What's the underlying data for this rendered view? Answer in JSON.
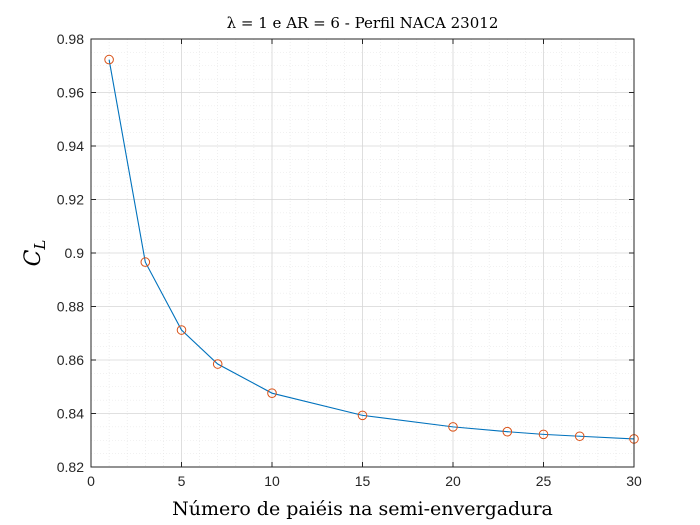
{
  "chart_data": {
    "type": "line",
    "title": "λ = 1 e AR = 6 - Perfil NACA 23012",
    "xlabel": "Número de paiéis na semi-envergadura",
    "ylabel_main": "C",
    "ylabel_sub": "L",
    "xlim": [
      0,
      30
    ],
    "ylim": [
      0.82,
      0.98
    ],
    "xticks": [
      0,
      5,
      10,
      15,
      20,
      25,
      30
    ],
    "xtick_labels": [
      "0",
      "5",
      "10",
      "15",
      "20",
      "25",
      "30"
    ],
    "yticks": [
      0.82,
      0.84,
      0.86,
      0.88,
      0.9,
      0.92,
      0.94,
      0.96,
      0.98
    ],
    "ytick_labels": [
      "0.82",
      "0.84",
      "0.86",
      "0.88",
      "0.9",
      "0.92",
      "0.94",
      "0.96",
      "0.98"
    ],
    "grid": true,
    "minor_grid": true,
    "series": [
      {
        "x": [
          1,
          3,
          5,
          7,
          10,
          15,
          20,
          23,
          25,
          27,
          30
        ],
        "y": [
          0.9723,
          0.8966,
          0.8712,
          0.8585,
          0.8476,
          0.8393,
          0.835,
          0.8332,
          0.8322,
          0.8315,
          0.8305
        ],
        "line_color": "#0072BD",
        "marker": "circle",
        "marker_color": "#D95319"
      }
    ]
  }
}
